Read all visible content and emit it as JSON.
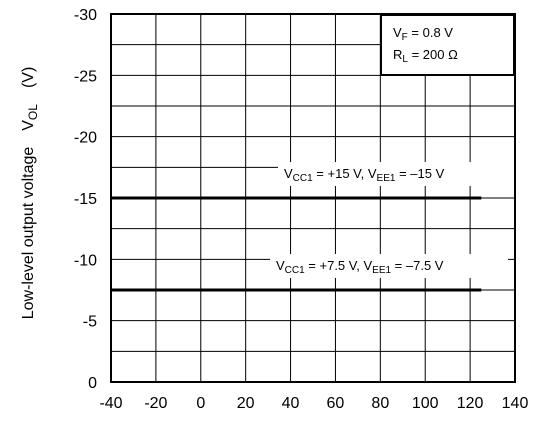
{
  "chart_data": {
    "type": "line",
    "title": "",
    "xlabel": "",
    "ylabel_main": "Low-level output voltage",
    "ylabel_symbol": "V",
    "ylabel_subscript": "OL",
    "ylabel_unit": "(V)",
    "xlim": [
      -40,
      140
    ],
    "ylim": [
      0,
      -30
    ],
    "x_ticks": [
      -40,
      -20,
      0,
      20,
      40,
      60,
      80,
      100,
      120,
      140
    ],
    "y_ticks": [
      0,
      -5,
      -10,
      -15,
      -20,
      -25,
      -30
    ],
    "y_tick_labels": [
      "0",
      "-5",
      "-10",
      "-15",
      "-20",
      "-25",
      "-30"
    ],
    "grid": true,
    "series": [
      {
        "x": [
          -40,
          125
        ],
        "y": [
          -15,
          -15
        ],
        "label_parts": [
          {
            "t": "V",
            "sub": false
          },
          {
            "t": "CC1",
            "sub": true
          },
          {
            "t": " = +15 V, V",
            "sub": false
          },
          {
            "t": "EE1",
            "sub": true
          },
          {
            "t": " = –15 V",
            "sub": false
          }
        ]
      },
      {
        "x": [
          -40,
          125
        ],
        "y": [
          -7.5,
          -7.5
        ],
        "label_parts": [
          {
            "t": "V",
            "sub": false
          },
          {
            "t": "CC1",
            "sub": true
          },
          {
            "t": " = +7.5 V, V",
            "sub": false
          },
          {
            "t": "EE1",
            "sub": true
          },
          {
            "t": " = –7.5 V",
            "sub": false
          }
        ]
      }
    ],
    "legend": {
      "position": "top-right",
      "lines": [
        [
          {
            "t": "V",
            "sub": false
          },
          {
            "t": "F",
            "sub": true
          },
          {
            "t": " = 0.8 V",
            "sub": false
          }
        ],
        [
          {
            "t": "R",
            "sub": false
          },
          {
            "t": "L",
            "sub": true
          },
          {
            "t": " = 200 Ω",
            "sub": false
          }
        ]
      ]
    }
  }
}
